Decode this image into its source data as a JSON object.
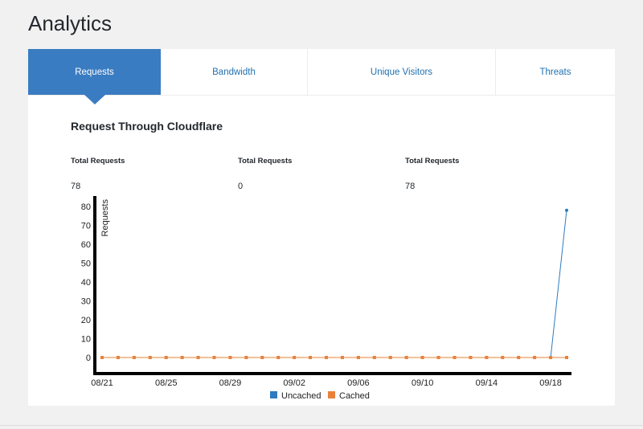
{
  "page": {
    "title": "Analytics"
  },
  "tabs": [
    {
      "label": "Requests",
      "active": true
    },
    {
      "label": "Bandwidth",
      "active": false
    },
    {
      "label": "Unique Visitors",
      "active": false
    },
    {
      "label": "Threats",
      "active": false
    }
  ],
  "chart_section": {
    "title": "Request Through Cloudflare",
    "stats": [
      {
        "label": "Total Requests",
        "value": "78"
      },
      {
        "label": "Total Requests",
        "value": "0"
      },
      {
        "label": "Total Requests",
        "value": "78"
      }
    ]
  },
  "colors": {
    "accent": "#3a7cc1",
    "uncached": "#2e7bbf",
    "cached": "#e8823a"
  },
  "chart_data": {
    "type": "line",
    "ylabel": "Requests",
    "xlabel": "",
    "ylim": [
      0,
      80
    ],
    "yticks": [
      0,
      10,
      20,
      30,
      40,
      50,
      60,
      70,
      80
    ],
    "xtick_labels": [
      "08/21",
      "08/25",
      "08/29",
      "09/02",
      "09/06",
      "09/10",
      "09/14",
      "09/18"
    ],
    "x": [
      "08/21",
      "08/22",
      "08/23",
      "08/24",
      "08/25",
      "08/26",
      "08/27",
      "08/28",
      "08/29",
      "08/30",
      "08/31",
      "09/01",
      "09/02",
      "09/03",
      "09/04",
      "09/05",
      "09/06",
      "09/07",
      "09/08",
      "09/09",
      "09/10",
      "09/11",
      "09/12",
      "09/13",
      "09/14",
      "09/15",
      "09/16",
      "09/17",
      "09/18",
      "09/19"
    ],
    "series": [
      {
        "name": "Uncached",
        "color": "#2e7bbf",
        "values": [
          0,
          0,
          0,
          0,
          0,
          0,
          0,
          0,
          0,
          0,
          0,
          0,
          0,
          0,
          0,
          0,
          0,
          0,
          0,
          0,
          0,
          0,
          0,
          0,
          0,
          0,
          0,
          0,
          0,
          78
        ]
      },
      {
        "name": "Cached",
        "color": "#e8823a",
        "values": [
          0,
          0,
          0,
          0,
          0,
          0,
          0,
          0,
          0,
          0,
          0,
          0,
          0,
          0,
          0,
          0,
          0,
          0,
          0,
          0,
          0,
          0,
          0,
          0,
          0,
          0,
          0,
          0,
          0,
          0
        ]
      }
    ],
    "legend_position": "bottom",
    "grid": false
  }
}
